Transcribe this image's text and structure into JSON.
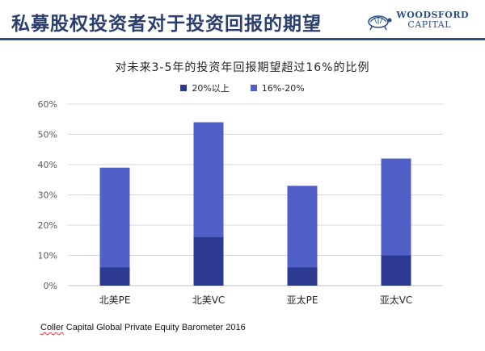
{
  "slide": {
    "title": "私募股权投资者对于投资回报的期望",
    "logo_line1": "WOODSFORD",
    "logo_line2": "CAPITAL",
    "source_first_word": "Coller",
    "source_rest": " Capital Global Private Equity Barometer 2016"
  },
  "colors": {
    "title": "#2a3f6e",
    "accent": "#2a4f86",
    "series_dark": "#2b3990",
    "series_light": "#5060c8",
    "gridline": "#d9d9d9"
  },
  "chart_data": {
    "type": "bar",
    "stacked": true,
    "title": "对未来3-5年的投资年回报期望超过16%的比例",
    "categories": [
      "北美PE",
      "北美VC",
      "亚太PE",
      "亚太VC"
    ],
    "series": [
      {
        "name": "20%以上",
        "values": [
          6,
          16,
          6,
          10
        ],
        "color": "#2b3990"
      },
      {
        "name": "16%-20%",
        "values": [
          33,
          38,
          27,
          32
        ],
        "color": "#5060c8"
      }
    ],
    "y_ticks": [
      "0%",
      "10%",
      "20%",
      "30%",
      "40%",
      "50%",
      "60%"
    ],
    "ylim": [
      0,
      60
    ],
    "grid": true,
    "legend_position": "top"
  }
}
